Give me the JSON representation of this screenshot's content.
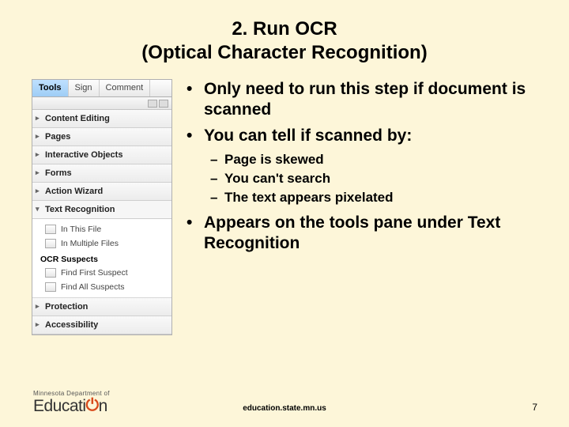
{
  "title_line1": "2. Run OCR",
  "title_line2": "(Optical Character Recognition)",
  "tools_panel": {
    "tabs": [
      {
        "label": "Tools",
        "active": true
      },
      {
        "label": "Sign",
        "active": false
      },
      {
        "label": "Comment",
        "active": false
      }
    ],
    "sections": [
      {
        "label": "Content Editing",
        "expanded": false
      },
      {
        "label": "Pages",
        "expanded": false
      },
      {
        "label": "Interactive Objects",
        "expanded": false
      },
      {
        "label": "Forms",
        "expanded": false
      },
      {
        "label": "Action Wizard",
        "expanded": false
      },
      {
        "label": "Text Recognition",
        "expanded": true
      }
    ],
    "text_recognition_items": [
      {
        "label": "In This File"
      },
      {
        "label": "In Multiple Files"
      }
    ],
    "suspects_header": "OCR Suspects",
    "suspects_items": [
      {
        "label": "Find First Suspect"
      },
      {
        "label": "Find All Suspects"
      }
    ],
    "tail_sections": [
      {
        "label": "Protection"
      },
      {
        "label": "Accessibility"
      }
    ]
  },
  "bullets": {
    "b1": "Only  need to run this step if document is scanned",
    "b2": "You can tell if scanned by:",
    "sub1": "Page is skewed",
    "sub2": "You can't search",
    "sub3": "The text appears pixelated",
    "b3": "Appears on the tools pane under Text Recognition"
  },
  "footer": {
    "logo_top": "Minnesota Department of",
    "logo_main_a": "Educati",
    "logo_main_b": "n",
    "url": "education.state.mn.us",
    "page": "7"
  },
  "colors": {
    "slide_bg": "#fdf6d9",
    "panel_bg": "#f1f1f1",
    "accent_orange": "#d84a1b"
  }
}
